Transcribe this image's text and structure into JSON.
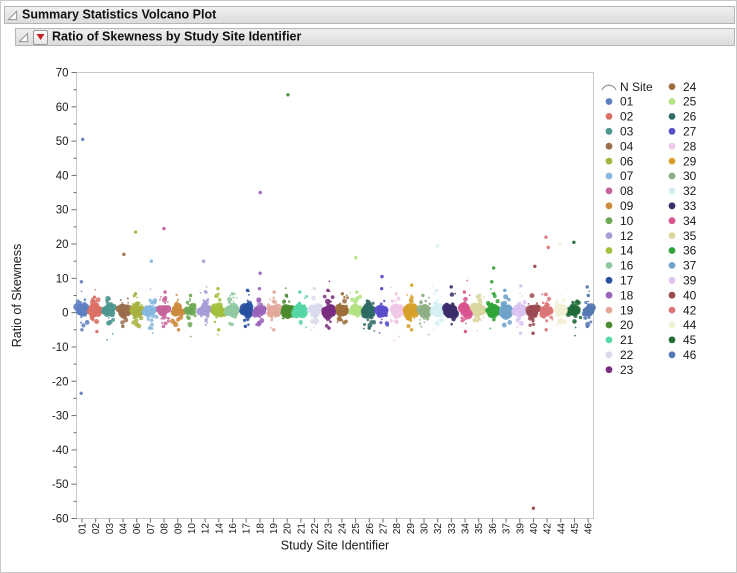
{
  "window": {
    "outline1_title": "Summary Statistics Volcano Plot",
    "outline2_title": "Ratio of Skewness by Study Site Identifier"
  },
  "chart_data": {
    "type": "scatter",
    "title": "Ratio of Skewness by Study Site Identifier",
    "xlabel": "Study Site Identifier",
    "ylabel": "Ratio of Skewness",
    "ylim": [
      -60,
      70
    ],
    "y_major_tick_step": 10,
    "y_minor_tick_step": 5,
    "y_tick_labels": [
      "70",
      "60",
      "50",
      "40",
      "30",
      "20",
      "10",
      "0",
      "-10",
      "-20",
      "-30",
      "-40",
      "-50",
      "-60"
    ],
    "grid": "off",
    "legend_position": "right",
    "legend": {
      "title": "N Site",
      "columns": 2,
      "rows_per_column": 19
    },
    "cluster_style": {
      "description": "each site shows a dense blob of overlapping points near y=0 plus scattered small points",
      "center_y": 0.6,
      "core_points": 20,
      "satellite_points": 16,
      "tiny_points": 5
    },
    "sites": [
      {
        "label": "01",
        "color": "#5E80C1",
        "outliers": [
          50.5,
          9,
          -23.5,
          -5
        ]
      },
      {
        "label": "02",
        "color": "#DB7065",
        "outliers": [
          -5.5,
          4.5
        ]
      },
      {
        "label": "03",
        "color": "#4D968F",
        "outliers": [
          4
        ]
      },
      {
        "label": "04",
        "color": "#9A6F4E",
        "outliers": [
          17,
          -4
        ]
      },
      {
        "label": "06",
        "color": "#A7B33F",
        "outliers": [
          23.5,
          5.5
        ]
      },
      {
        "label": "07",
        "color": "#86B7DE",
        "outliers": [
          15,
          -4.5
        ]
      },
      {
        "label": "08",
        "color": "#C7639B",
        "outliers": [
          24.5,
          6
        ]
      },
      {
        "label": "09",
        "color": "#CC8A3D",
        "outliers": [
          -5
        ]
      },
      {
        "label": "10",
        "color": "#6DA953",
        "outliers": [
          5
        ]
      },
      {
        "label": "12",
        "color": "#A79CD6",
        "outliers": [
          15,
          6
        ]
      },
      {
        "label": "14",
        "color": "#A3C13F",
        "outliers": [
          7,
          -5
        ]
      },
      {
        "label": "16",
        "color": "#90C9A1",
        "outliers": [
          5.5
        ]
      },
      {
        "label": "17",
        "color": "#27519F",
        "outliers": [
          6.5,
          -4
        ]
      },
      {
        "label": "18",
        "color": "#9B64BB",
        "outliers": [
          35,
          11.5,
          7
        ]
      },
      {
        "label": "19",
        "color": "#E3A89A",
        "outliers": [
          6,
          -5
        ]
      },
      {
        "label": "20",
        "color": "#4C8A2F",
        "outliers": [
          63.5,
          5
        ]
      },
      {
        "label": "21",
        "color": "#55D7A6",
        "outliers": [
          6
        ]
      },
      {
        "label": "22",
        "color": "#D9DBEC",
        "outliers": [
          7
        ]
      },
      {
        "label": "23",
        "color": "#7A2E80",
        "outliers": [
          6.5,
          -4.5
        ]
      },
      {
        "label": "24",
        "color": "#9C6E3C",
        "outliers": [
          5.5
        ]
      },
      {
        "label": "25",
        "color": "#B2E383",
        "outliers": [
          16,
          6
        ]
      },
      {
        "label": "26",
        "color": "#2F6A64",
        "outliers": [
          -4.5
        ]
      },
      {
        "label": "27",
        "color": "#5A4ECB",
        "outliers": [
          10.5,
          7
        ]
      },
      {
        "label": "28",
        "color": "#F0C7E4",
        "outliers": [
          5.5
        ]
      },
      {
        "label": "29",
        "color": "#D6A029",
        "outliers": [
          8,
          -5
        ]
      },
      {
        "label": "30",
        "color": "#8EAE84",
        "outliers": [
          5
        ]
      },
      {
        "label": "32",
        "color": "#D5F0F3",
        "outliers": [
          19.5,
          6.5
        ]
      },
      {
        "label": "33",
        "color": "#3B2D69",
        "outliers": [
          7.5
        ]
      },
      {
        "label": "34",
        "color": "#D85490",
        "outliers": [
          6,
          -5.5
        ]
      },
      {
        "label": "35",
        "color": "#DBD6A0",
        "outliers": [
          5
        ]
      },
      {
        "label": "36",
        "color": "#2FA436",
        "outliers": [
          13,
          9,
          5.5
        ]
      },
      {
        "label": "37",
        "color": "#6EA2CB",
        "outliers": [
          6.5
        ]
      },
      {
        "label": "39",
        "color": "#DAC3F2",
        "outliers": [
          7.8,
          -6
        ]
      },
      {
        "label": "40",
        "color": "#9C4A51",
        "outliers": [
          -57,
          13.5,
          -6
        ]
      },
      {
        "label": "42",
        "color": "#DB7477",
        "outliers": [
          22,
          19,
          -5
        ]
      },
      {
        "label": "44",
        "color": "#F2F0D6",
        "outliers": [
          20
        ]
      },
      {
        "label": "45",
        "color": "#206B39",
        "outliers": [
          20.5
        ]
      },
      {
        "label": "46",
        "color": "#5578B4",
        "outliers": [
          7.5,
          5,
          -4
        ]
      }
    ]
  }
}
